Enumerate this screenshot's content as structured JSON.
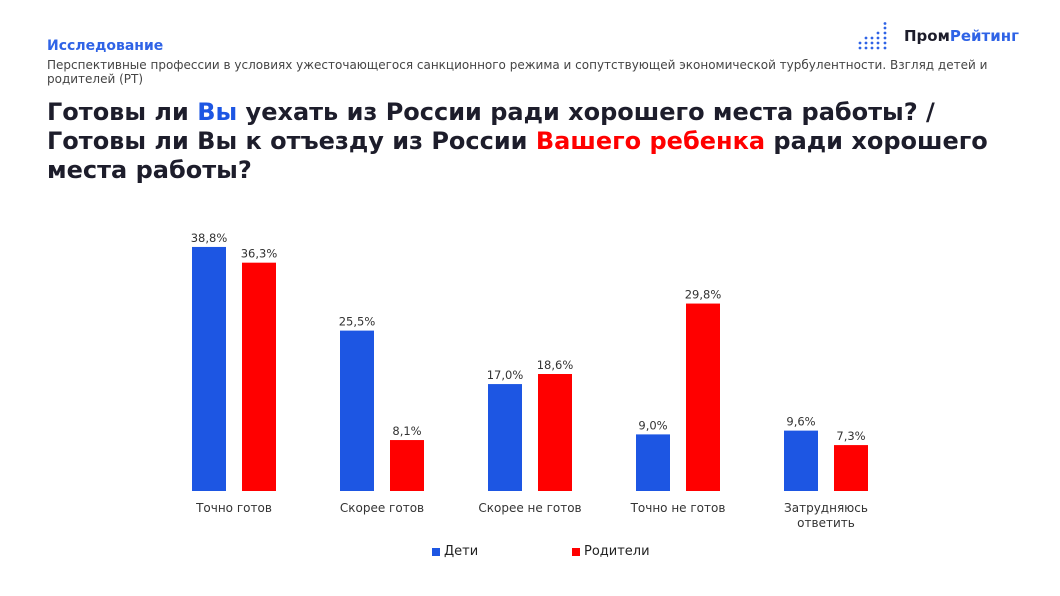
{
  "header": {
    "kicker": "Исследование",
    "subtitle": "Перспективные профессии в условиях ужесточающегося санкционного режима и сопутствующей экономической турбулентности. Взгляд детей и родителей (РТ)",
    "title_parts": {
      "p1": "Готовы ли ",
      "p2": "Вы",
      "p3": " уехать из России ради хорошего места работы? / Готовы ли Вы к отъезду из России ",
      "p4": "Вашего ребенка",
      "p5": " ради хорошего места работы?"
    }
  },
  "logo": {
    "part1": "Пром",
    "part2": "Рейтинг"
  },
  "chart_data": {
    "type": "bar",
    "title": "",
    "xlabel": "",
    "ylabel": "",
    "ylim": [
      0,
      40
    ],
    "grid": false,
    "legend_position": "bottom",
    "categories": [
      "Точно готов",
      "Скорее готов",
      "Скорее не готов",
      "Точно не готов",
      "Затрудняюсь ответить"
    ],
    "series": [
      {
        "name": "Дети",
        "color": "#1d56e3",
        "values": [
          38.8,
          25.5,
          17.0,
          9.0,
          9.6
        ],
        "labels": [
          "38,8%",
          "25,5%",
          "17,0%",
          "9,0%",
          "9,6%"
        ]
      },
      {
        "name": "Родители",
        "color": "#ff0000",
        "values": [
          36.3,
          8.1,
          18.6,
          29.8,
          7.3
        ],
        "labels": [
          "36,3%",
          "8,1%",
          "18,6%",
          "29,8%",
          "7,3%"
        ]
      }
    ]
  }
}
